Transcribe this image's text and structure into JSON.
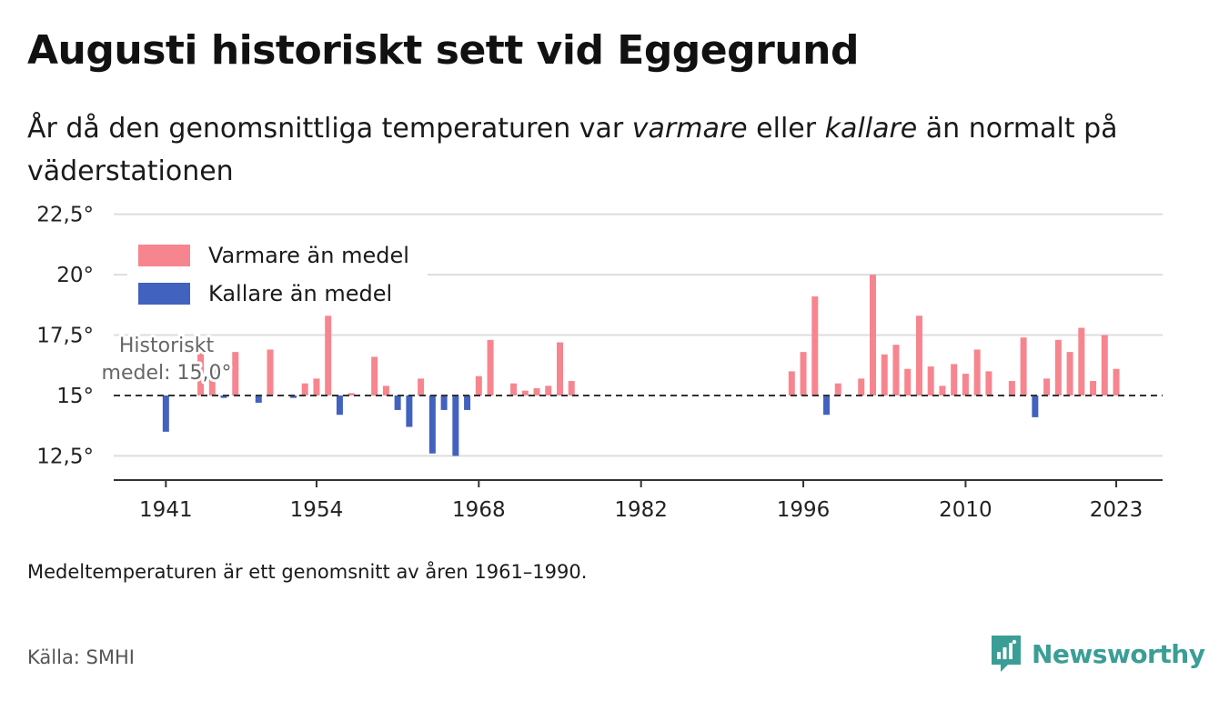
{
  "title": "Augusti historiskt sett vid Eggegrund",
  "subtitle": {
    "part1": "År då den genomsnittliga temperaturen var ",
    "em1": "varmare",
    "part2": " eller ",
    "em2": "kallare",
    "part3": " än normalt på väderstationen"
  },
  "footnote": "Medeltemperaturen är ett genomsnitt av åren 1961–1990.",
  "source": "Källa: SMHI",
  "brand": {
    "name": "Newsworthy",
    "icon": "newsworthy-logo-icon",
    "color": "#3a9e96"
  },
  "colors": {
    "warm": "#f7858f",
    "cold": "#4262c0",
    "grid": "#dddddd",
    "axis": "#333333",
    "baseline": "#333333"
  },
  "chart_data": {
    "type": "bar",
    "title": "",
    "xlabel": "",
    "ylabel": "",
    "ylim": [
      11.5,
      22.9
    ],
    "xlim": [
      1936.5,
      2027
    ],
    "baseline": 15.0,
    "baseline_label": [
      "Historiskt",
      "medel: 15,0°"
    ],
    "x_ticks": [
      1941,
      1954,
      1968,
      1982,
      1996,
      2010,
      2023
    ],
    "x_tick_labels": [
      "1941",
      "1954",
      "1968",
      "1982",
      "1996",
      "2010",
      "2023"
    ],
    "y_ticks": [
      12.5,
      15,
      17.5,
      20,
      22.5
    ],
    "y_tick_labels": [
      "12,5°",
      "15°",
      "17,5°",
      "20°",
      "22,5°"
    ],
    "grid": true,
    "legend": {
      "position": "top-left",
      "entries": [
        {
          "name": "Varmare än medel",
          "color": "#f7858f"
        },
        {
          "name": "Kallare än medel",
          "color": "#4262c0"
        }
      ]
    },
    "x": [
      1941,
      1944,
      1945,
      1946,
      1947,
      1949,
      1950,
      1952,
      1953,
      1954,
      1955,
      1956,
      1957,
      1959,
      1960,
      1961,
      1962,
      1963,
      1964,
      1965,
      1966,
      1967,
      1968,
      1969,
      1971,
      1972,
      1973,
      1974,
      1975,
      1976,
      1995,
      1996,
      1997,
      1998,
      1999,
      2001,
      2002,
      2003,
      2004,
      2005,
      2006,
      2007,
      2008,
      2009,
      2010,
      2011,
      2012,
      2014,
      2015,
      2016,
      2017,
      2018,
      2019,
      2020,
      2021,
      2022,
      2023
    ],
    "values": [
      13.5,
      16.9,
      16.3,
      14.9,
      16.8,
      14.7,
      16.9,
      14.9,
      15.5,
      15.7,
      18.3,
      14.2,
      15.1,
      16.6,
      15.4,
      14.4,
      13.7,
      15.7,
      12.6,
      14.4,
      12.5,
      14.4,
      15.8,
      17.3,
      15.5,
      15.2,
      15.3,
      15.4,
      17.2,
      15.6,
      16.0,
      16.8,
      19.1,
      14.2,
      15.5,
      15.7,
      20.0,
      16.7,
      17.1,
      16.1,
      18.3,
      16.2,
      15.4,
      16.3,
      15.9,
      16.9,
      16.0,
      15.6,
      17.4,
      14.1,
      15.7,
      17.3,
      16.8,
      17.8,
      15.6,
      17.5,
      16.1
    ]
  }
}
